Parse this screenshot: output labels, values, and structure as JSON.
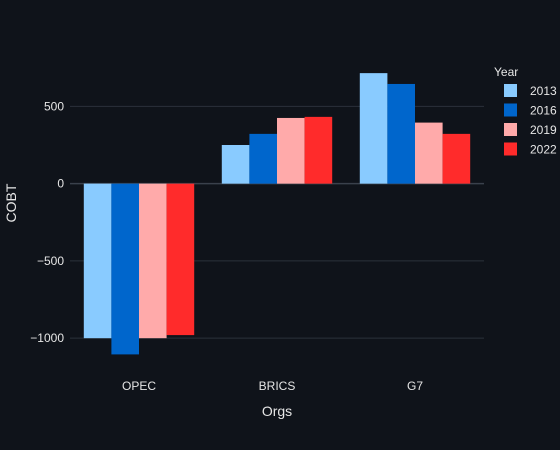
{
  "chart_data": {
    "type": "bar",
    "categories": [
      "OPEC",
      "BRICS",
      "G7"
    ],
    "series": [
      {
        "name": "2013",
        "color": "#89cbff",
        "values": [
          -1000,
          250,
          715
        ]
      },
      {
        "name": "2016",
        "color": "#0066cc",
        "values": [
          -1105,
          322,
          645
        ]
      },
      {
        "name": "2019",
        "color": "#ffaaaa",
        "values": [
          -1000,
          425,
          395
        ]
      },
      {
        "name": "2022",
        "color": "#ff2b2b",
        "values": [
          -980,
          432,
          322
        ]
      }
    ],
    "xlabel": "Orgs",
    "ylabel": "COBT",
    "ylim": [
      -1180,
      800
    ],
    "yticks": [
      500,
      0,
      -500,
      -1000
    ],
    "ytick_labels": [
      "500",
      "0",
      "−500",
      "−1000"
    ],
    "legend_title": "Year",
    "legend_position": "top-right",
    "grid": true
  }
}
